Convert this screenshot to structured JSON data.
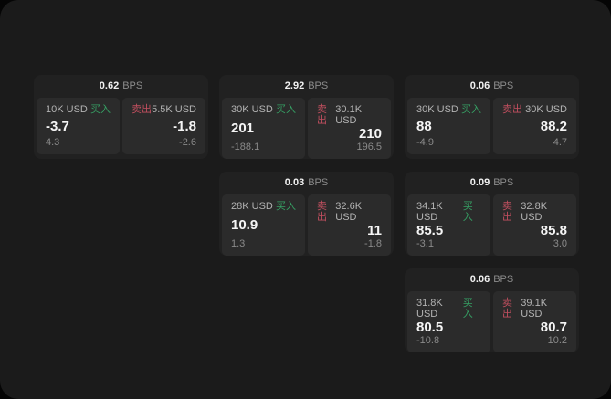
{
  "labels": {
    "bps": "BPS",
    "buy": "买入",
    "sell": "卖出"
  },
  "colors": {
    "page_bg": "#050505",
    "panel_bg": "#1b1b1b",
    "card_bg": "#212121",
    "tile_bg": "#2b2b2b",
    "buy_green": "#36a064",
    "sell_red": "#c14f5f",
    "size_gray": "#b3b3b3",
    "delta_gray": "#8a8a8a",
    "price_white": "#f5f5f5"
  },
  "cards": [
    {
      "col": 1,
      "row": 1,
      "bps": "0.62",
      "buy": {
        "size": "10K USD",
        "price": "-3.7",
        "delta": "4.3"
      },
      "sell": {
        "size": "5.5K USD",
        "price": "-1.8",
        "delta": "-2.6"
      }
    },
    {
      "col": 2,
      "row": 1,
      "bps": "2.92",
      "buy": {
        "size": "30K USD",
        "price": "201",
        "delta": "-188.1"
      },
      "sell": {
        "size": "30.1K USD",
        "price": "210",
        "delta": "196.5"
      }
    },
    {
      "col": 3,
      "row": 1,
      "bps": "0.06",
      "buy": {
        "size": "30K USD",
        "price": "88",
        "delta": "-4.9"
      },
      "sell": {
        "size": "30K USD",
        "price": "88.2",
        "delta": "4.7"
      }
    },
    {
      "col": 2,
      "row": 2,
      "bps": "0.03",
      "buy": {
        "size": "28K USD",
        "price": "10.9",
        "delta": "1.3"
      },
      "sell": {
        "size": "32.6K USD",
        "price": "11",
        "delta": "-1.8"
      }
    },
    {
      "col": 3,
      "row": 2,
      "bps": "0.09",
      "buy": {
        "size": "34.1K USD",
        "price": "85.5",
        "delta": "-3.1"
      },
      "sell": {
        "size": "32.8K USD",
        "price": "85.8",
        "delta": "3.0"
      }
    },
    {
      "col": 3,
      "row": 3,
      "bps": "0.06",
      "buy": {
        "size": "31.8K USD",
        "price": "80.5",
        "delta": "-10.8"
      },
      "sell": {
        "size": "39.1K USD",
        "price": "80.7",
        "delta": "10.2"
      }
    }
  ]
}
